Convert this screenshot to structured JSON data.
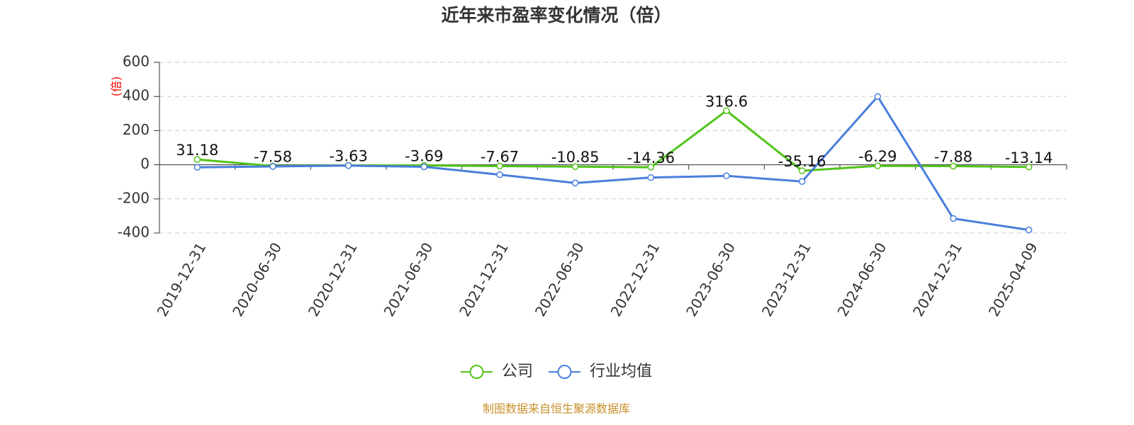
{
  "chart_data": {
    "type": "line",
    "title": "近年来市盈率变化情况（倍）",
    "y_label": "(倍)",
    "categories": [
      "2019-12-31",
      "2020-06-30",
      "2020-12-31",
      "2021-06-30",
      "2021-12-31",
      "2022-06-30",
      "2022-12-31",
      "2023-06-30",
      "2023-12-31",
      "2024-06-30",
      "2024-12-31",
      "2025-04-09"
    ],
    "series": [
      {
        "name": "公司",
        "color": "#52c41a",
        "values": [
          31.18,
          -7.58,
          -3.63,
          -3.69,
          -7.67,
          -10.85,
          -14.36,
          316.6,
          -35.16,
          -6.29,
          -7.88,
          -13.14
        ],
        "data_labels": true
      },
      {
        "name": "行业均值",
        "color": "#4a7fdc",
        "values": [
          -15,
          -10,
          -5,
          -12,
          -58,
          -107,
          -75,
          -65,
          -98,
          400,
          -315,
          -382
        ],
        "data_labels": false
      }
    ],
    "ylim": [
      -400,
      600
    ],
    "yticks": [
      -400,
      -200,
      0,
      200,
      400,
      600
    ],
    "grid": true,
    "legend": "bottom",
    "source": "制图数据来自恒生聚源数据库"
  }
}
